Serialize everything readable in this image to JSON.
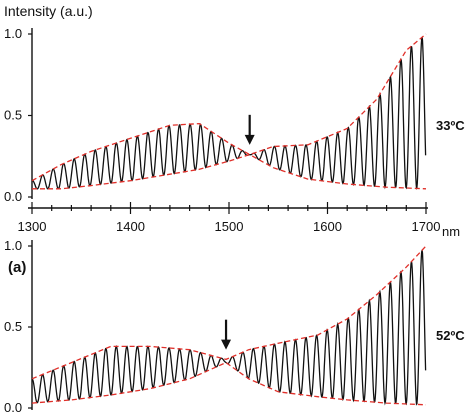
{
  "chart_data": {
    "type": "line",
    "ylabel": "Intensity (a.u.)",
    "x_unit": "nm",
    "xlim": [
      1300,
      1700
    ],
    "x_ticks": [
      "1300",
      "1400",
      "1500",
      "1600",
      "1700"
    ],
    "panels": [
      {
        "id": "top",
        "tag": "",
        "temperature": "33ºC",
        "ylim": [
          0,
          1.0
        ],
        "y_ticks": [
          "0.0",
          "0.5",
          "1.0"
        ],
        "arrow_x": 1521,
        "fringe_period_nm": 10.7,
        "upper_envelope": {
          "x": [
            1300,
            1330,
            1360,
            1400,
            1440,
            1470,
            1500,
            1521,
            1545,
            1580,
            1620,
            1650,
            1680,
            1700
          ],
          "y": [
            0.1,
            0.2,
            0.28,
            0.36,
            0.44,
            0.45,
            0.33,
            0.26,
            0.31,
            0.32,
            0.42,
            0.6,
            0.9,
            1.0
          ]
        },
        "lower_envelope": {
          "x": [
            1300,
            1330,
            1360,
            1400,
            1440,
            1470,
            1500,
            1521,
            1545,
            1580,
            1620,
            1660,
            1700
          ],
          "y": [
            0.05,
            0.05,
            0.07,
            0.1,
            0.14,
            0.17,
            0.22,
            0.26,
            0.18,
            0.11,
            0.08,
            0.06,
            0.05
          ]
        }
      },
      {
        "id": "bottom",
        "tag": "(a)",
        "temperature": "52ºC",
        "ylim": [
          0,
          1.0
        ],
        "y_ticks": [
          "0.0",
          "0.5",
          "1.0"
        ],
        "arrow_x": 1497,
        "fringe_period_nm": 10.7,
        "upper_envelope": {
          "x": [
            1300,
            1340,
            1380,
            1420,
            1460,
            1497,
            1520,
            1550,
            1590,
            1620,
            1650,
            1680,
            1700
          ],
          "y": [
            0.18,
            0.28,
            0.38,
            0.38,
            0.36,
            0.3,
            0.36,
            0.4,
            0.45,
            0.55,
            0.7,
            0.87,
            1.0
          ]
        },
        "lower_envelope": {
          "x": [
            1300,
            1340,
            1380,
            1420,
            1460,
            1497,
            1520,
            1550,
            1590,
            1620,
            1660,
            1700
          ],
          "y": [
            0.03,
            0.05,
            0.08,
            0.12,
            0.18,
            0.28,
            0.18,
            0.1,
            0.07,
            0.05,
            0.03,
            0.02
          ]
        }
      }
    ]
  }
}
